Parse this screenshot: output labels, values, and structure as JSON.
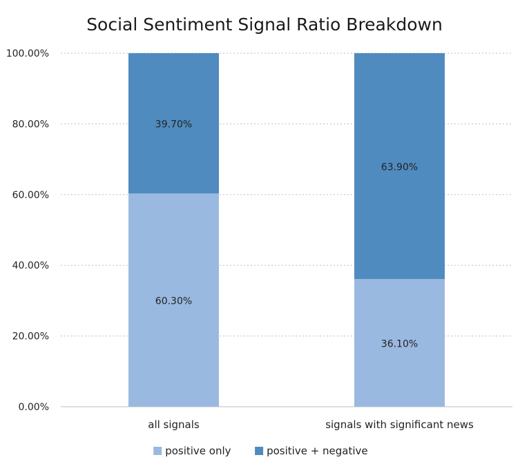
{
  "chart_data": {
    "type": "bar",
    "stacked": true,
    "title": "Social Sentiment Signal Ratio Breakdown",
    "xlabel": "",
    "ylabel": "",
    "categories": [
      "all signals",
      "signals with significant news"
    ],
    "series": [
      {
        "name": "positive only",
        "values": [
          60.3,
          36.1
        ],
        "labels": [
          "60.30%",
          "36.10%"
        ],
        "color": "#9ab9e0"
      },
      {
        "name": "positive + negative",
        "values": [
          39.7,
          63.9
        ],
        "labels": [
          "39.70%",
          "63.90%"
        ],
        "color": "#4f8bbf"
      }
    ],
    "ylim": [
      0,
      100
    ],
    "yticks": [
      "0.00%",
      "20.00%",
      "40.00%",
      "60.00%",
      "80.00%",
      "100.00%"
    ],
    "grid": true,
    "legend": "bottom"
  }
}
